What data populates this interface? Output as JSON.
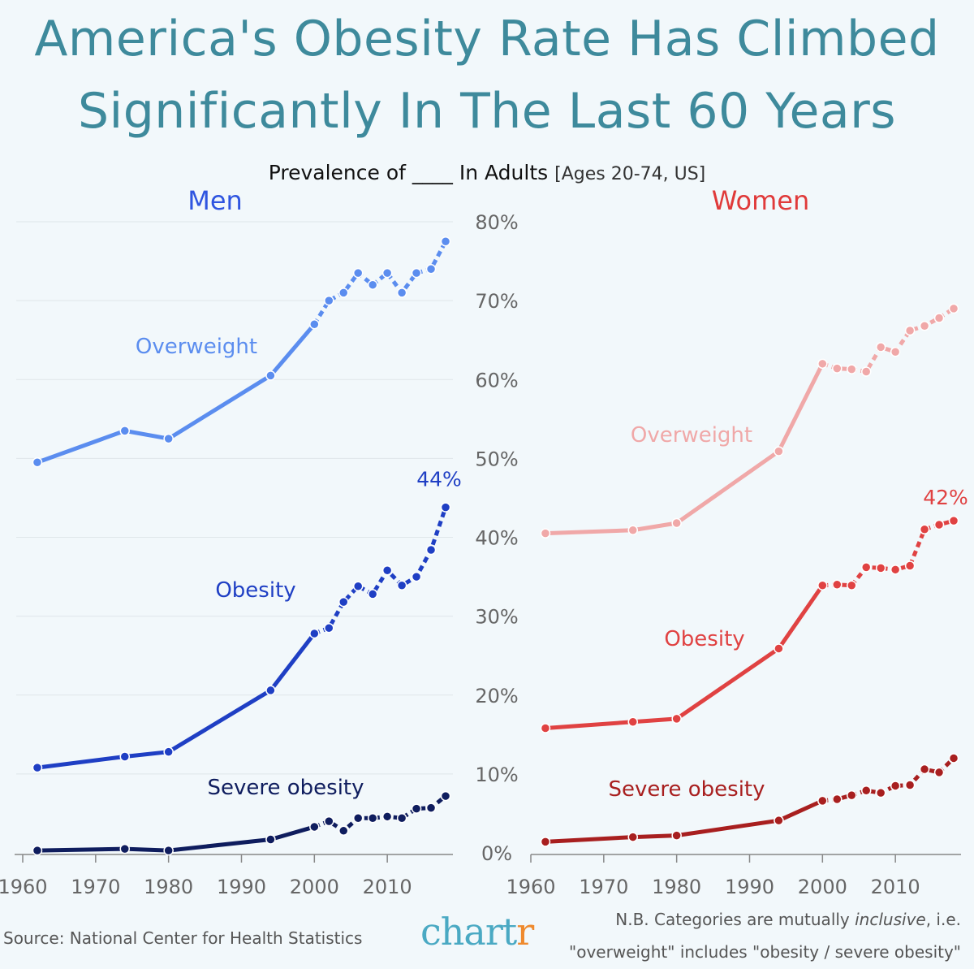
{
  "header": {
    "title_line1": "America's Obesity Rate Has Climbed",
    "title_line2": "Significantly In The Last 60 Years",
    "subtitle_main": "Prevalence of ____ In Adults",
    "subtitle_detail": "[Ages 20-74, US]"
  },
  "footer": {
    "source": "Source: National Center for Health Statistics",
    "logo_main": "chart",
    "logo_accent": "r",
    "note_line1_prefix": "N.B. Categories are mutually ",
    "note_line1_em": "inclusive",
    "note_line1_suffix": ", i.e.",
    "note_line2": "\"overweight\" includes \"obesity / severe obesity\""
  },
  "chart_data": [
    {
      "type": "line",
      "title": "Men",
      "x_ticks": [
        "1960",
        "1970",
        "1980",
        "1990",
        "2000",
        "2010"
      ],
      "y_ticks": [
        "0%",
        "10%",
        "20%",
        "30%",
        "40%",
        "50%",
        "60%",
        "70%",
        "80%"
      ],
      "xlim": [
        1960,
        2019
      ],
      "ylim": [
        0,
        80
      ],
      "grid": true,
      "series": [
        {
          "name": "Overweight",
          "color": "#5b8def",
          "x": [
            1962,
            1974,
            1980,
            1994,
            2000,
            2002,
            2004,
            2006,
            2008,
            2010,
            2012,
            2014,
            2016,
            2018
          ],
          "y": [
            49.5,
            53.5,
            52.5,
            60.5,
            67,
            70,
            71,
            73.5,
            72,
            73.5,
            71,
            73.5,
            74,
            77.5
          ]
        },
        {
          "name": "Obesity",
          "color": "#1f3fc4",
          "x": [
            1962,
            1974,
            1980,
            1994,
            2000,
            2002,
            2004,
            2006,
            2008,
            2010,
            2012,
            2014,
            2016,
            2018
          ],
          "y": [
            10.8,
            12.2,
            12.8,
            20.6,
            27.8,
            28.5,
            31.8,
            33.8,
            32.8,
            35.8,
            33.9,
            35.0,
            38.4,
            43.8
          ]
        },
        {
          "name": "Severe obesity",
          "color": "#0f1d5e",
          "x": [
            1962,
            1974,
            1980,
            1994,
            2000,
            2002,
            2004,
            2006,
            2008,
            2010,
            2012,
            2014,
            2016,
            2018
          ],
          "y": [
            0.3,
            0.5,
            0.3,
            1.7,
            3.3,
            4.0,
            2.8,
            4.4,
            4.4,
            4.6,
            4.4,
            5.6,
            5.7,
            7.2
          ]
        }
      ],
      "annotations": [
        "44%"
      ]
    },
    {
      "type": "line",
      "title": "Women",
      "x_ticks": [
        "1960",
        "1970",
        "1980",
        "1990",
        "2000",
        "2010"
      ],
      "y_ticks": [
        "0%",
        "10%",
        "20%",
        "30%",
        "40%",
        "50%",
        "60%",
        "70%",
        "80%"
      ],
      "xlim": [
        1960,
        2019
      ],
      "ylim": [
        0,
        80
      ],
      "grid": false,
      "series": [
        {
          "name": "Overweight",
          "color": "#f0a8a8",
          "x": [
            1962,
            1974,
            1980,
            1994,
            2000,
            2002,
            2004,
            2006,
            2008,
            2010,
            2012,
            2014,
            2016,
            2018
          ],
          "y": [
            40.5,
            40.9,
            41.8,
            50.9,
            62.0,
            61.4,
            61.3,
            61.0,
            64.1,
            63.5,
            66.2,
            66.8,
            67.8,
            69.0
          ]
        },
        {
          "name": "Obesity",
          "color": "#e04242",
          "x": [
            1962,
            1974,
            1980,
            1994,
            2000,
            2002,
            2004,
            2006,
            2008,
            2010,
            2012,
            2014,
            2016,
            2018
          ],
          "y": [
            15.8,
            16.6,
            17.0,
            25.9,
            33.9,
            34.0,
            33.9,
            36.2,
            36.1,
            35.9,
            36.4,
            41.0,
            41.6,
            42.1
          ]
        },
        {
          "name": "Severe obesity",
          "color": "#a81f1f",
          "x": [
            1962,
            1974,
            1980,
            1994,
            2000,
            2002,
            2004,
            2006,
            2008,
            2010,
            2012,
            2014,
            2016,
            2018
          ],
          "y": [
            1.4,
            2.0,
            2.2,
            4.1,
            6.6,
            6.8,
            7.3,
            7.9,
            7.6,
            8.5,
            8.6,
            10.6,
            10.2,
            12.0
          ]
        }
      ],
      "annotations": [
        "42%"
      ]
    }
  ]
}
